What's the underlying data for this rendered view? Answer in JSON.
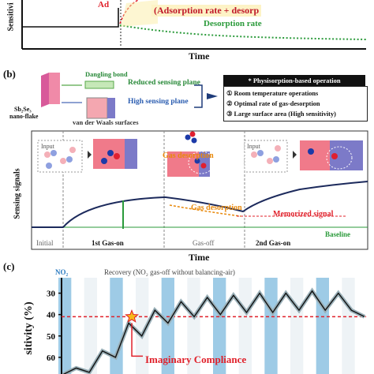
{
  "panel_a": {
    "ylabel": "Sensitivi",
    "xlabel": "Time",
    "label_partial": "Ad",
    "ads_formula": "(Adsorption rate + desorp",
    "des_label": "Desorption rate"
  },
  "panel_b": {
    "tag": "(b)",
    "material": "Sb₂Se₃",
    "material2": "nano-flake",
    "dangling": "Dangling bond",
    "reduced": "Reduced sensing plane",
    "high": "High sensing plane",
    "vdw": "van der Waals surfaces",
    "phys_title": "* Physisorption-based operation",
    "phys_items": [
      "① Room temperature operations",
      "② Optimal rate of gas-desorption",
      "③ Large surface area (High sensitivity)"
    ],
    "input1": "Input",
    "input2": "Input",
    "gas_desorption_1": "Gas desorption",
    "gas_desorption_2": "Gas desorption",
    "memorized": "Memorized signal",
    "ylabel": "Sensing signals",
    "baseline": "Baseline",
    "phases": [
      "Initial",
      "1st Gas-on",
      "Gas-off",
      "2nd Gas-on"
    ],
    "xlabel": "Time"
  },
  "panel_c": {
    "tag": "(c)",
    "no2": "NO₂",
    "recovery": "Recovery (NO₂ gas-off without balancing-air)",
    "ylabel": "sitivity (%)",
    "yticks": [
      "60",
      "50",
      "40",
      "30"
    ],
    "compliance": "Imaginary Compliance"
  },
  "colors": {
    "blue_band": "#9ecbe6",
    "red_dashed": "#e0202a",
    "green_dotted": "#2a9a3a",
    "navy": "#1c2a5c",
    "orange": "#e8890c"
  },
  "chart_data": [
    {
      "type": "line",
      "title": "",
      "xlabel": "Time",
      "ylabel": "Sensitivi",
      "series": [
        {
          "name": "(Adsorption rate + desorp",
          "values": [
            0,
            0,
            0.55,
            0.8,
            0.95,
            1.0
          ]
        },
        {
          "name": "Desorption rate",
          "values": [
            0,
            0,
            0.25,
            0.18,
            0.12,
            0.08
          ]
        }
      ],
      "x": [
        0,
        1,
        2,
        3,
        4,
        5
      ],
      "grid": false
    },
    {
      "type": "line",
      "title": "",
      "xlabel": "",
      "ylabel": "sitivity (%)",
      "ylim": [
        20,
        65
      ],
      "yticks": [
        30,
        40,
        50,
        60
      ],
      "x": [
        0,
        1,
        2,
        3,
        4,
        5,
        6,
        7,
        8,
        9,
        10,
        11,
        12,
        13,
        14,
        15,
        16,
        17,
        18,
        19,
        20,
        21,
        22,
        23
      ],
      "series": [
        {
          "name": "",
          "values": [
            22,
            25,
            23,
            33,
            30,
            46,
            40,
            52,
            46,
            56,
            49,
            58,
            50,
            59,
            51,
            60,
            51,
            60,
            52,
            61,
            52,
            60,
            52,
            49
          ]
        }
      ],
      "reference_line": 49,
      "grid": false
    }
  ]
}
